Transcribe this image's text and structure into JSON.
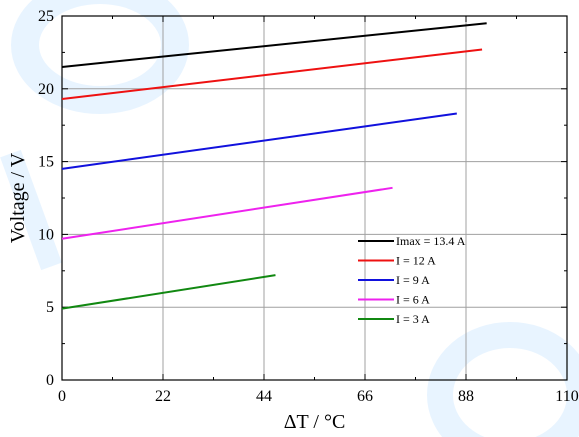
{
  "chart_data": {
    "type": "line",
    "title": "",
    "xlabel": "ΔT / °C",
    "ylabel": "Voltage / V",
    "xlim": [
      0,
      110
    ],
    "ylim": [
      0,
      25
    ],
    "xticks": [
      0,
      22,
      44,
      66,
      88,
      110
    ],
    "yticks": [
      0,
      5,
      10,
      15,
      20,
      25
    ],
    "grid": true,
    "legend_position": "center-right",
    "series": [
      {
        "name": "Imax = 13.4 A",
        "color": "#000000",
        "x": [
          0,
          92.5
        ],
        "y": [
          21.5,
          24.5
        ]
      },
      {
        "name": "I = 12 A",
        "color": "#ee1111",
        "x": [
          0,
          91.5
        ],
        "y": [
          19.3,
          22.7
        ]
      },
      {
        "name": "I = 9 A",
        "color": "#1111dd",
        "x": [
          0,
          86
        ],
        "y": [
          14.5,
          18.3
        ]
      },
      {
        "name": "I = 6 A",
        "color": "#ee22ee",
        "x": [
          0,
          72
        ],
        "y": [
          9.7,
          13.2
        ]
      },
      {
        "name": "I = 3 A",
        "color": "#118811",
        "x": [
          0,
          46.5
        ],
        "y": [
          4.9,
          7.2
        ]
      }
    ]
  }
}
